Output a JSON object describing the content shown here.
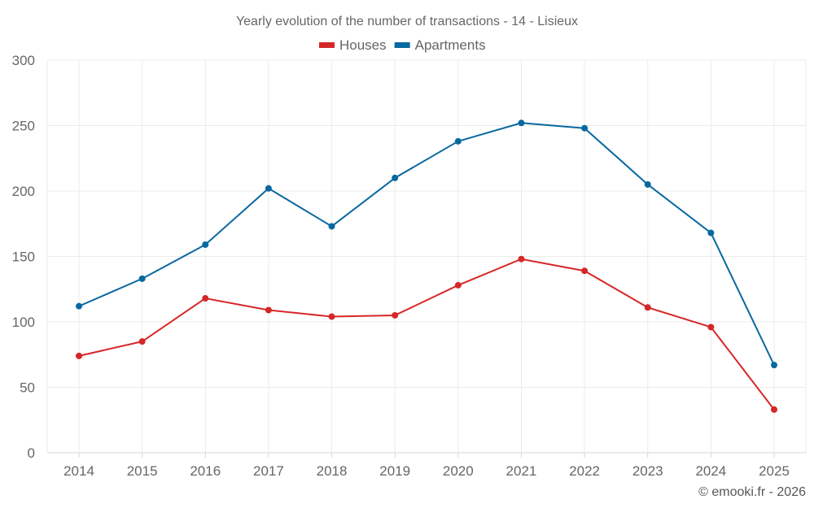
{
  "chart_data": {
    "type": "line",
    "title": "Yearly evolution of the number of transactions - 14 - Lisieux",
    "xlabel": "",
    "ylabel": "",
    "x": [
      "2014",
      "2015",
      "2016",
      "2017",
      "2018",
      "2019",
      "2020",
      "2021",
      "2022",
      "2023",
      "2024",
      "2025"
    ],
    "ylim": [
      0,
      300
    ],
    "yticks": [
      0,
      50,
      100,
      150,
      200,
      250,
      300
    ],
    "grid": true,
    "legend_position": "top-center",
    "series": [
      {
        "name": "Houses",
        "color": "#d62728",
        "values": [
          74,
          85,
          118,
          109,
          104,
          105,
          128,
          148,
          139,
          111,
          96,
          33
        ]
      },
      {
        "name": "Apartments",
        "color": "#0868a0",
        "values": [
          112,
          133,
          159,
          202,
          173,
          210,
          238,
          252,
          248,
          205,
          168,
          67
        ]
      }
    ],
    "credit": "© emooki.fr - 2026"
  }
}
